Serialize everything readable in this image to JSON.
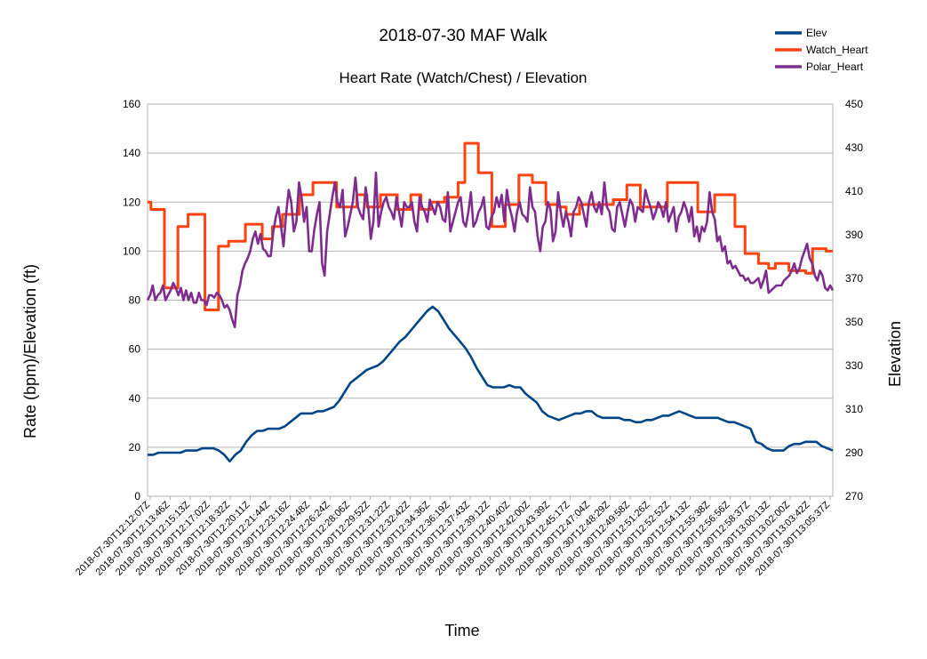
{
  "chart_data": {
    "type": "line",
    "title": "2018-07-30 MAF Walk",
    "subtitle": "Heart Rate (Watch/Chest) / Elevation",
    "xlabel": "Time",
    "ylabel": "Rate (bpm)/Elevation (ft)",
    "y2label": "Elevation",
    "ylim": [
      0,
      160
    ],
    "y2lim": [
      270,
      450
    ],
    "yticks": [
      "0",
      "20",
      "40",
      "60",
      "80",
      "100",
      "120",
      "140",
      "160"
    ],
    "y2ticks": [
      "270",
      "290",
      "310",
      "330",
      "350",
      "370",
      "390",
      "410",
      "430",
      "450"
    ],
    "grid": true,
    "legend_position": "top-right",
    "x_tick_labels": [
      "2018-07-30T12:12:07Z",
      "2018-07-30T12:13:46Z",
      "2018-07-30T12:15:13Z",
      "2018-07-30T12:17:02Z",
      "2018-07-30T12:18:32Z",
      "2018-07-30T12:20:11Z",
      "2018-07-30T12:21:44Z",
      "2018-07-30T12:23:16Z",
      "2018-07-30T12:24:48Z",
      "2018-07-30T12:26:24Z",
      "2018-07-30T12:28:06Z",
      "2018-07-30T12:29:52Z",
      "2018-07-30T12:31:22Z",
      "2018-07-30T12:32:42Z",
      "2018-07-30T12:34:36Z",
      "2018-07-30T12:36:19Z",
      "2018-07-30T12:37:43Z",
      "2018-07-30T12:39:12Z",
      "2018-07-30T12:40:40Z",
      "2018-07-30T12:42:00Z",
      "2018-07-30T12:43:39Z",
      "2018-07-30T12:45:17Z",
      "2018-07-30T12:47:04Z",
      "2018-07-30T12:48:29Z",
      "2018-07-30T12:49:58Z",
      "2018-07-30T12:51:26Z",
      "2018-07-30T12:52:52Z",
      "2018-07-30T12:54:13Z",
      "2018-07-30T12:55:38Z",
      "2018-07-30T12:56:56Z",
      "2018-07-30T12:58:37Z",
      "2018-07-30T13:00:13Z",
      "2018-07-30T13:02:00Z",
      "2018-07-30T13:03:42Z",
      "2018-07-30T13:05:37Z"
    ],
    "series": [
      {
        "name": "Elev",
        "axis": "secondary",
        "color": "#004586",
        "values": [
          289,
          289,
          290,
          290,
          290,
          290,
          290,
          291,
          291,
          291,
          292,
          292,
          292,
          291,
          289,
          286,
          289,
          291,
          295,
          298,
          300,
          300,
          301,
          301,
          301,
          302,
          304,
          306,
          308,
          308,
          308,
          309,
          309,
          310,
          311,
          314,
          318,
          322,
          324,
          326,
          328,
          329,
          330,
          332,
          335,
          338,
          341,
          343,
          346,
          349,
          352,
          355,
          357,
          355,
          351,
          347,
          344,
          341,
          338,
          334,
          329,
          325,
          321,
          320,
          320,
          320,
          321,
          320,
          320,
          317,
          315,
          313,
          309,
          307,
          306,
          305,
          306,
          307,
          308,
          308,
          309,
          309,
          307,
          306,
          306,
          306,
          306,
          305,
          305,
          304,
          304,
          305,
          305,
          306,
          307,
          307,
          308,
          309,
          308,
          307,
          306,
          306,
          306,
          306,
          306,
          305,
          304,
          304,
          303,
          302,
          301,
          295,
          294,
          292,
          291,
          291,
          291,
          293,
          294,
          294,
          295,
          295,
          295,
          293,
          292,
          291
        ]
      },
      {
        "name": "Watch_Heart",
        "axis": "primary",
        "color": "#ff420e",
        "values": [
          120,
          117,
          117,
          117,
          117,
          85,
          85,
          85,
          85,
          110,
          110,
          110,
          115,
          115,
          115,
          115,
          115,
          76,
          76,
          76,
          76,
          102,
          102,
          102,
          104,
          104,
          104,
          104,
          104,
          111,
          111,
          111,
          111,
          111,
          105,
          105,
          105,
          110,
          110,
          110,
          115,
          115,
          115,
          115,
          115,
          123,
          123,
          123,
          123,
          128,
          128,
          128,
          128,
          128,
          128,
          128,
          118,
          118,
          118,
          118,
          118,
          118,
          123,
          123,
          123,
          118,
          118,
          118,
          118,
          123,
          123,
          123,
          123,
          123,
          117,
          117,
          117,
          117,
          123,
          123,
          123,
          117,
          117,
          117,
          120,
          120,
          120,
          120,
          122,
          122,
          122,
          122,
          128,
          128,
          144,
          144,
          144,
          144,
          132,
          132,
          132,
          132,
          110,
          110,
          110,
          110,
          119,
          119,
          119,
          119,
          131,
          131,
          131,
          131,
          128,
          128,
          128,
          128,
          119,
          119,
          119,
          119,
          118,
          118,
          115,
          115,
          115,
          115,
          119,
          119,
          119,
          119,
          119,
          119,
          119,
          119,
          119,
          119,
          121,
          121,
          121,
          121,
          127,
          127,
          127,
          127,
          118,
          118,
          118,
          118,
          118,
          118,
          118,
          118,
          128,
          128,
          128,
          128,
          128,
          128,
          128,
          128,
          128,
          116,
          116,
          116,
          116,
          116,
          123,
          123,
          123,
          123,
          123,
          123,
          110,
          110,
          110,
          99,
          99,
          99,
          99,
          95,
          95,
          95,
          93,
          93,
          95,
          95,
          95,
          95,
          92,
          92,
          92,
          92,
          92,
          91,
          91,
          101,
          101,
          101,
          101,
          100,
          100,
          100
        ]
      },
      {
        "name": "Polar_Heart",
        "axis": "primary",
        "color": "#7e2d8e",
        "values": [
          80,
          82,
          86,
          80,
          82,
          83,
          86,
          80,
          82,
          84,
          87,
          85,
          82,
          85,
          80,
          84,
          80,
          83,
          79,
          79,
          83,
          80,
          80,
          78,
          82,
          82,
          81,
          83,
          82,
          80,
          77,
          78,
          76,
          72,
          69,
          82,
          86,
          92,
          95,
          97,
          100,
          105,
          108,
          103,
          107,
          101,
          100,
          98,
          98,
          108,
          114,
          118,
          110,
          102,
          115,
          125,
          120,
          108,
          112,
          128,
          122,
          112,
          118,
          100,
          100,
          109,
          115,
          120,
          95,
          90,
          108,
          115,
          122,
          128,
          120,
          118,
          125,
          106,
          110,
          115,
          120,
          130,
          118,
          115,
          113,
          126,
          118,
          105,
          112,
          132,
          110,
          116,
          120,
          122,
          118,
          116,
          113,
          122,
          116,
          110,
          120,
          118,
          118,
          120,
          112,
          108,
          122,
          118,
          116,
          112,
          121,
          118,
          115,
          120,
          118,
          113,
          112,
          124,
          108,
          112,
          116,
          120,
          122,
          112,
          110,
          116,
          124,
          110,
          112,
          116,
          118,
          122,
          110,
          109,
          114,
          116,
          122,
          118,
          123,
          112,
          125,
          118,
          114,
          108,
          116,
          120,
          115,
          114,
          112,
          126,
          118,
          116,
          106,
          100,
          110,
          112,
          120,
          117,
          104,
          108,
          124,
          116,
          110,
          116,
          112,
          106,
          116,
          118,
          122,
          120,
          115,
          110,
          120,
          124,
          118,
          116,
          120,
          115,
          128,
          118,
          116,
          109,
          108,
          118,
          120,
          115,
          110,
          116,
          121,
          119,
          112,
          118,
          117,
          116,
          125,
          121,
          118,
          113,
          116,
          120,
          118,
          114,
          120,
          112,
          115,
          118,
          108,
          114,
          116,
          120,
          117,
          112,
          118,
          106,
          110,
          104,
          110,
          108,
          112,
          124,
          116,
          113,
          104,
          106,
          100,
          102,
          95,
          96,
          93,
          94,
          92,
          90,
          90,
          88,
          89,
          87,
          87,
          88,
          89,
          85,
          88,
          92,
          83,
          84,
          85,
          86,
          86,
          86,
          88,
          89,
          90,
          92,
          95,
          91,
          93,
          97,
          100,
          103,
          97,
          95,
          90,
          88,
          92,
          90,
          85,
          84,
          86,
          84
        ]
      }
    ]
  }
}
